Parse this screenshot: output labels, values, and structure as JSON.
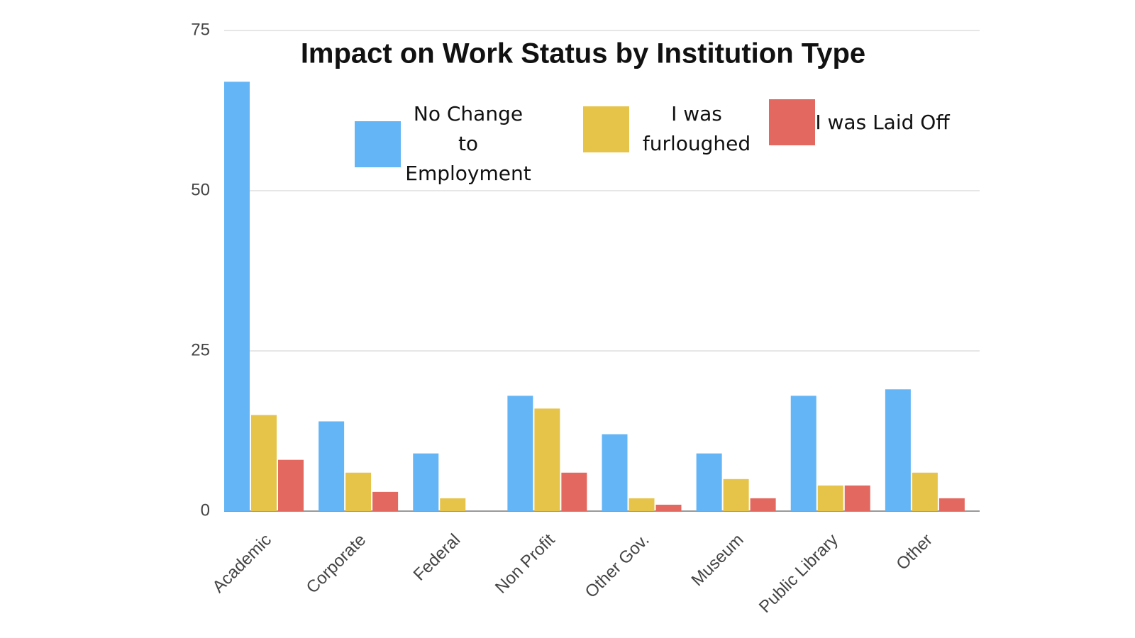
{
  "chart_data": {
    "type": "bar",
    "title": "Impact on Work Status by Institution Type",
    "categories": [
      "Academic",
      "Corporate",
      "Federal",
      "Non Profit",
      "Other Gov.",
      "Museum",
      "Public Library",
      "Other"
    ],
    "series": [
      {
        "name": "No Change to Employment",
        "color": "#64b5f6",
        "values": [
          67,
          14,
          9,
          18,
          12,
          9,
          18,
          19
        ]
      },
      {
        "name": "I was furloughed",
        "color": "#e6c44a",
        "values": [
          15,
          6,
          2,
          16,
          2,
          5,
          4,
          6
        ]
      },
      {
        "name": "I was Laid Off",
        "color": "#e3685f",
        "values": [
          8,
          3,
          0,
          6,
          1,
          2,
          4,
          2
        ]
      }
    ],
    "ylim": [
      0,
      75
    ],
    "yticks": [
      0,
      25,
      50,
      75
    ],
    "grid": true
  }
}
